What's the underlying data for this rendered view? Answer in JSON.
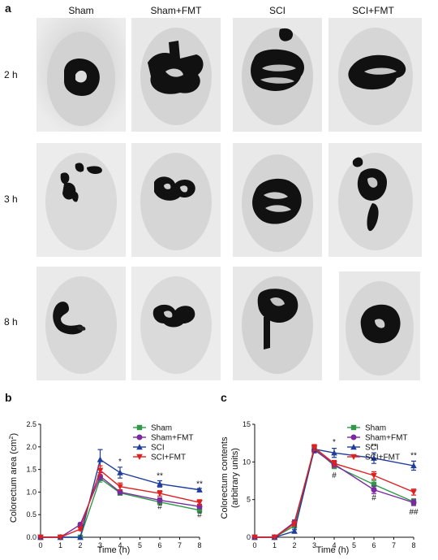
{
  "panel_a": {
    "letter": "a",
    "columns": [
      "Sham",
      "Sham+FMT",
      "SCI",
      "SCI+FMT"
    ],
    "rows": [
      "2 h",
      "3 h",
      "8 h"
    ]
  },
  "colors": {
    "Sham": "#2e9a46",
    "Sham+FMT": "#7a2aa0",
    "SCI": "#1f3d9c",
    "SCI+FMT": "#e02020"
  },
  "chart_data": [
    {
      "letter": "b",
      "type": "line",
      "xlabel": "Time (h)",
      "ylabel": "Colorectum area (cm",
      "ylabel_sup": "2",
      "ylabel_close": ")",
      "x": [
        0,
        1,
        2,
        3,
        4,
        6,
        8
      ],
      "xticks": [
        0,
        1,
        2,
        3,
        4,
        5,
        6,
        7,
        8
      ],
      "yticks": [
        0.0,
        0.5,
        1.0,
        1.5,
        2.0,
        2.5
      ],
      "ytick_labels": [
        "0.0",
        "0.5",
        "1.0",
        "1.5",
        "2.0",
        "2.5"
      ],
      "xlim": [
        0,
        8
      ],
      "ylim": [
        0,
        2.5
      ],
      "series": [
        {
          "name": "Sham",
          "values": [
            0,
            0,
            0,
            1.3,
            0.98,
            0.78,
            0.6
          ],
          "err": [
            0,
            0,
            0,
            0.08,
            0.05,
            0.05,
            0.05
          ]
        },
        {
          "name": "Sham+FMT",
          "values": [
            0,
            0,
            0.28,
            1.35,
            1.0,
            0.82,
            0.68
          ],
          "err": [
            0,
            0,
            0.04,
            0.08,
            0.05,
            0.05,
            0.05
          ]
        },
        {
          "name": "SCI",
          "values": [
            0,
            0,
            0,
            1.72,
            1.43,
            1.18,
            1.05
          ],
          "err": [
            0,
            0,
            0,
            0.22,
            0.12,
            0.07,
            0.03
          ]
        },
        {
          "name": "SCI+FMT",
          "values": [
            0,
            0,
            0.18,
            1.48,
            1.12,
            0.97,
            0.77
          ],
          "err": [
            0,
            0,
            0.03,
            0.1,
            0.08,
            0.06,
            0.06
          ]
        }
      ],
      "annotations": [
        {
          "x": 4,
          "y": 1.62,
          "text": "*"
        },
        {
          "x": 6,
          "y": 1.3,
          "text": "**"
        },
        {
          "x": 8,
          "y": 1.12,
          "text": "**"
        },
        {
          "x": 6,
          "y": 0.62,
          "text": "#"
        },
        {
          "x": 8,
          "y": 0.44,
          "text": "#"
        }
      ],
      "legend": "top-right"
    },
    {
      "letter": "c",
      "type": "line",
      "xlabel": "Time (h)",
      "ylabel": "Colorectum contents",
      "ylabel2": "(arbitrary units)",
      "x": [
        0,
        1,
        2,
        3,
        4,
        6,
        8
      ],
      "xticks": [
        0,
        1,
        2,
        3,
        4,
        5,
        6,
        7,
        8
      ],
      "yticks": [
        0,
        5,
        10,
        15
      ],
      "ytick_labels": [
        "0",
        "5",
        "10",
        "15"
      ],
      "xlim": [
        0,
        8
      ],
      "ylim": [
        0,
        15
      ],
      "series": [
        {
          "name": "Sham",
          "values": [
            0,
            0,
            1.5,
            11.8,
            9.5,
            7.0,
            4.7
          ],
          "err": [
            0,
            0,
            0.3,
            0.4,
            0.4,
            0.5,
            0.4
          ]
        },
        {
          "name": "Sham+FMT",
          "values": [
            0,
            0,
            2.0,
            11.6,
            9.7,
            6.3,
            4.6
          ],
          "err": [
            0,
            0,
            0.3,
            0.4,
            0.4,
            0.5,
            0.4
          ]
        },
        {
          "name": "SCI",
          "values": [
            0,
            0,
            0.8,
            11.7,
            11.2,
            10.5,
            9.5
          ],
          "err": [
            0,
            0,
            0.2,
            0.4,
            0.6,
            0.7,
            0.6
          ]
        },
        {
          "name": "SCI+FMT",
          "values": [
            0,
            0,
            1.8,
            11.9,
            9.8,
            8.2,
            6.0
          ],
          "err": [
            0,
            0,
            0.3,
            0.4,
            0.4,
            0.5,
            0.4
          ]
        }
      ],
      "annotations": [
        {
          "x": 4,
          "y": 12.3,
          "text": "*"
        },
        {
          "x": 6,
          "y": 11.7,
          "text": "**"
        },
        {
          "x": 8,
          "y": 10.5,
          "text": "**"
        },
        {
          "x": 4,
          "y": 7.9,
          "text": "#"
        },
        {
          "x": 6,
          "y": 4.9,
          "text": "#"
        },
        {
          "x": 8,
          "y": 3.0,
          "text": "##"
        }
      ],
      "legend": "top-right"
    }
  ]
}
